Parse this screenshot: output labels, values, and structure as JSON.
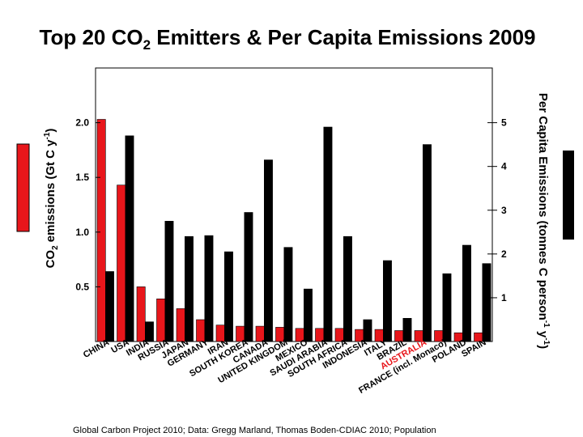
{
  "chart_data": {
    "type": "bar",
    "title_main": "Top 20 CO",
    "title_sub": "2",
    "title_rest": " Emitters & Per Capita Emissions 2009",
    "ylabel_left": {
      "a": "CO",
      "b": "2",
      "c": " emissions (Gt C y",
      "d": "-1",
      "e": ")"
    },
    "ylabel_right": {
      "a": "Per Capita Emissions (tonnes C person",
      "b": "-1",
      "c": " y",
      "d": "-1",
      "e": ")"
    },
    "ylim_left": [
      0,
      2.5
    ],
    "ylim_right": [
      0,
      6.25
    ],
    "yticks_left": [
      {
        "value": 0.5,
        "label": "0.5"
      },
      {
        "value": 1.0,
        "label": "1.0"
      },
      {
        "value": 1.5,
        "label": "1.5"
      },
      {
        "value": 2.0,
        "label": "2.0"
      }
    ],
    "yticks_right": [
      {
        "value": 1,
        "label": "1"
      },
      {
        "value": 2,
        "label": "2"
      },
      {
        "value": 3,
        "label": "3"
      },
      {
        "value": 4,
        "label": "4"
      },
      {
        "value": 5,
        "label": "5"
      }
    ],
    "categories": [
      "CHINA",
      "USA",
      "INDIA",
      "RUSSIA",
      "JAPAN",
      "GERMANY",
      "IRAN",
      "SOUTH KOREA",
      "CANADA",
      "UNITED KINGDOM",
      "MEXICO",
      "SAUDI ARABIA",
      "SOUTH AFRICA",
      "INDONESIA",
      "ITALY",
      "BRAZIL",
      "AUSTRALIA",
      "FRANCE (incl. Monaco)",
      "POLAND",
      "SPAIN"
    ],
    "highlight_category": "AUSTRALIA",
    "series": [
      {
        "name": "CO2 emissions (Gt C/y)",
        "axis": "left",
        "color": "#e8161b",
        "values": [
          2.03,
          1.43,
          0.5,
          0.39,
          0.3,
          0.2,
          0.15,
          0.14,
          0.14,
          0.13,
          0.12,
          0.12,
          0.12,
          0.11,
          0.11,
          0.1,
          0.1,
          0.1,
          0.08,
          0.08
        ]
      },
      {
        "name": "Per capita emissions (t C/person/y)",
        "axis": "right",
        "color": "#000000",
        "values": [
          1.6,
          4.7,
          0.45,
          2.75,
          2.4,
          2.42,
          2.05,
          2.95,
          4.15,
          2.15,
          1.2,
          4.9,
          2.4,
          0.5,
          1.85,
          0.53,
          4.5,
          1.55,
          2.2,
          1.78
        ]
      }
    ],
    "source": "Global Carbon Project 2010; Data: Gregg Marland, Thomas Boden-CDIAC 2010; Population",
    "colors": {
      "left_series": "#e8161b",
      "right_series": "#000000",
      "highlight_label": "#e8161b",
      "text": "#000000"
    }
  }
}
